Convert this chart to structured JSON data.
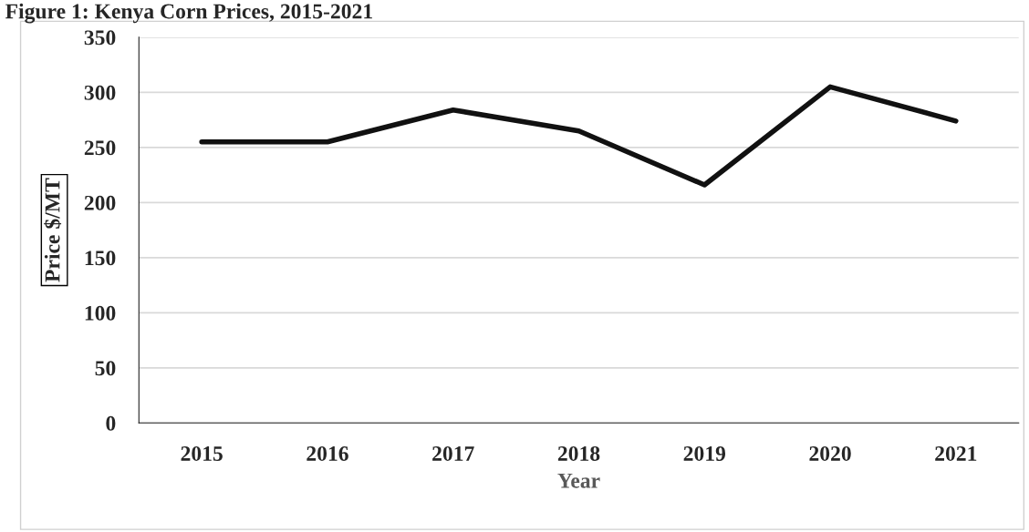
{
  "chart_data": {
    "type": "line",
    "title": "Figure 1: Kenya Corn Prices, 2015-2021",
    "xlabel": "Year",
    "ylabel": "Price $/MT",
    "categories": [
      "2015",
      "2016",
      "2017",
      "2018",
      "2019",
      "2020",
      "2021"
    ],
    "series": [
      {
        "color": "#111111",
        "values": [
          255,
          255,
          284,
          265,
          216,
          305,
          274
        ]
      }
    ],
    "ylim": [
      0,
      350
    ],
    "yticks": [
      0,
      50,
      100,
      150,
      200,
      250,
      300,
      350
    ],
    "grid": "y",
    "legend": false,
    "marker": "none",
    "line_style": "solid"
  }
}
